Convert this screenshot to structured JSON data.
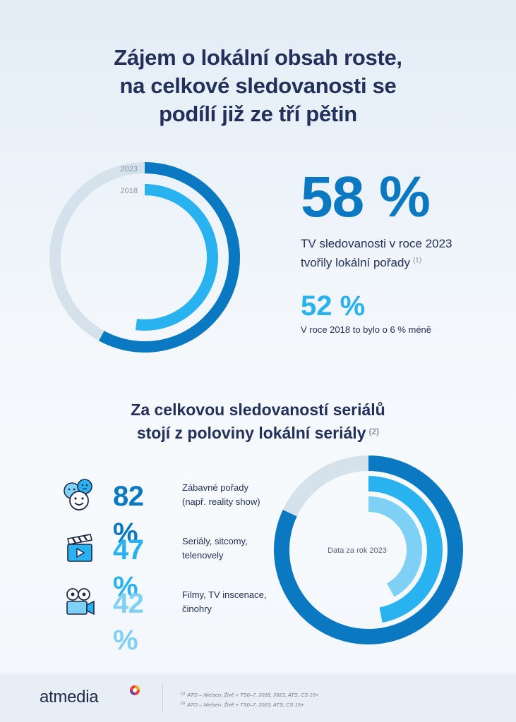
{
  "headline": {
    "line1": "Zájem o lokální obsah roste,",
    "line2": "na celkové sledovanosti se",
    "line3": "podílí již ze tří pětin"
  },
  "top_stats": {
    "big_value": "58 %",
    "desc_line1": "TV sledovanosti v roce 2023",
    "desc_line2": "tvořily lokální pořady",
    "desc_footnote": "(1)",
    "mid_value": "52 %",
    "mid_note": "V roce 2018 to bylo o 6 % méně"
  },
  "section2": {
    "line1": "Za celkovou sledovaností seriálů",
    "line2": "stojí z poloviny lokální seriály",
    "footnote": "(2)"
  },
  "genres": [
    {
      "pct": "82 %",
      "label_line1": "Zábavné pořady",
      "label_line2": "(např. reality show)",
      "icon": "entertainment-faces-icon",
      "color": "#0a79c2"
    },
    {
      "pct": "47 %",
      "label_line1": "Seriály, sitcomy,",
      "label_line2": "telenovely",
      "icon": "clapperboard-icon",
      "color": "#29b2f0"
    },
    {
      "pct": "42 %",
      "label_line1": "Filmy, TV inscenace,",
      "label_line2": "činohry",
      "icon": "movie-camera-icon",
      "color": "#7fd0f5"
    }
  ],
  "chart_data": [
    {
      "type": "pie",
      "variant": "concentric-radial",
      "series": [
        {
          "name": "2023",
          "value": 58,
          "color": "#0a79c2"
        },
        {
          "name": "2018",
          "value": 52,
          "color": "#29b2f0"
        }
      ],
      "max": 100,
      "track_color": "#d5e2ec"
    },
    {
      "type": "pie",
      "variant": "concentric-radial",
      "center_label": "Data za rok 2023",
      "series": [
        {
          "name": "Zábavné pořady",
          "value": 82,
          "color": "#0a79c2"
        },
        {
          "name": "Seriály, sitcomy, telenovely",
          "value": 47,
          "color": "#29b2f0"
        },
        {
          "name": "Filmy, TV inscenace, činohry",
          "value": 42,
          "color": "#7fd0f5"
        }
      ],
      "max": 100,
      "track_color": "#d5e2ec"
    }
  ],
  "footer": {
    "logo_text": "atmedia",
    "ref1_num": "(1)",
    "ref1": "ATO – Nielsen, Živě + TS0–7, 2018, 2023, ATS, CS 15+",
    "ref2_num": "(2)",
    "ref2": "ATO – Nielsen, Živě + TS0–7, 2023, ATS, CS 15+"
  }
}
